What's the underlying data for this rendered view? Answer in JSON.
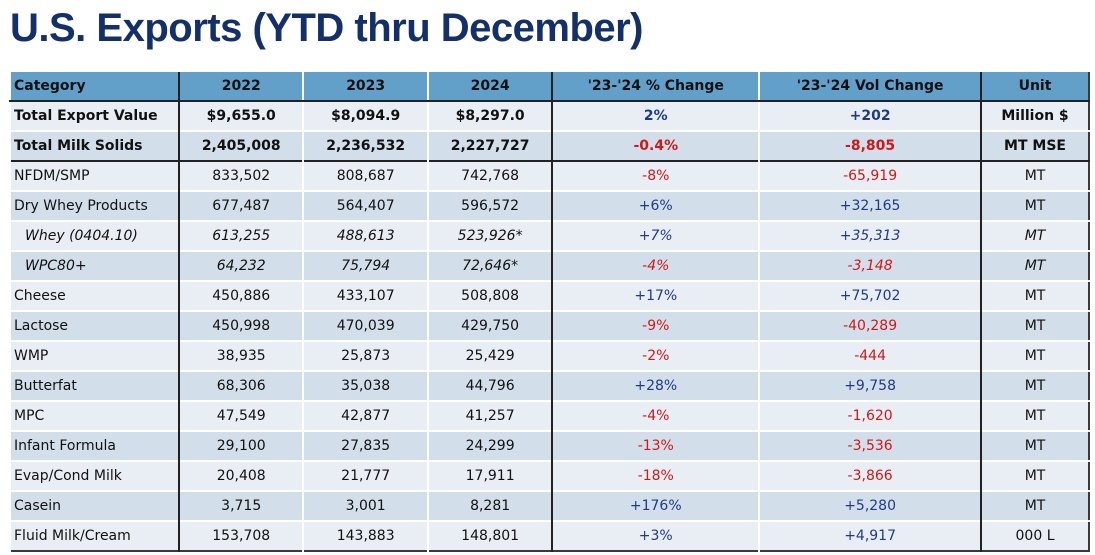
{
  "title": "U.S. Exports (YTD thru December)",
  "colors": {
    "title": "#13306b",
    "header": "#62a0ca",
    "positive": "#1f3b84",
    "negative": "#d01818"
  },
  "columns": [
    "Category",
    "2022",
    "2023",
    "2024",
    "'23-'24 % Change",
    "'23-'24 Vol Change",
    "Unit"
  ],
  "rows": [
    [
      "Total Export Value",
      "$9,655.0",
      "$8,094.9",
      "$8,297.0",
      "2%",
      "+202",
      "Million $"
    ],
    [
      "Total Milk Solids",
      "2,405,008",
      "2,236,532",
      "2,227,727",
      "-0.4%",
      "-8,805",
      "MT MSE"
    ],
    [
      "NFDM/SMP",
      "833,502",
      "808,687",
      "742,768",
      "-8%",
      "-65,919",
      "MT"
    ],
    [
      "Dry Whey Products",
      "677,487",
      "564,407",
      "596,572",
      "+6%",
      "+32,165",
      "MT"
    ],
    [
      "Whey (0404.10)",
      "613,255",
      "488,613",
      "523,926*",
      "+7%",
      "+35,313",
      "MT"
    ],
    [
      "WPC80+",
      "64,232",
      "75,794",
      "72,646*",
      "-4%",
      "-3,148",
      "MT"
    ],
    [
      "Cheese",
      "450,886",
      "433,107",
      "508,808",
      "+17%",
      "+75,702",
      "MT"
    ],
    [
      "Lactose",
      "450,998",
      "470,039",
      "429,750",
      "-9%",
      "-40,289",
      "MT"
    ],
    [
      "WMP",
      "38,935",
      "25,873",
      "25,429",
      "-2%",
      "-444",
      "MT"
    ],
    [
      "Butterfat",
      "68,306",
      "35,038",
      "44,796",
      "+28%",
      "+9,758",
      "MT"
    ],
    [
      "MPC",
      "47,549",
      "42,877",
      "41,257",
      "-4%",
      "-1,620",
      "MT"
    ],
    [
      "Infant Formula",
      "29,100",
      "27,835",
      "24,299",
      "-13%",
      "-3,536",
      "MT"
    ],
    [
      "Evap/Cond Milk",
      "20,408",
      "21,777",
      "17,911",
      "-18%",
      "-3,866",
      "MT"
    ],
    [
      "Casein",
      "3,715",
      "3,001",
      "8,281",
      "+176%",
      "+5,280",
      "MT"
    ],
    [
      "Fluid Milk/Cream",
      "153,708",
      "143,883",
      "148,801",
      "+3%",
      "+4,917",
      "000 L"
    ]
  ]
}
